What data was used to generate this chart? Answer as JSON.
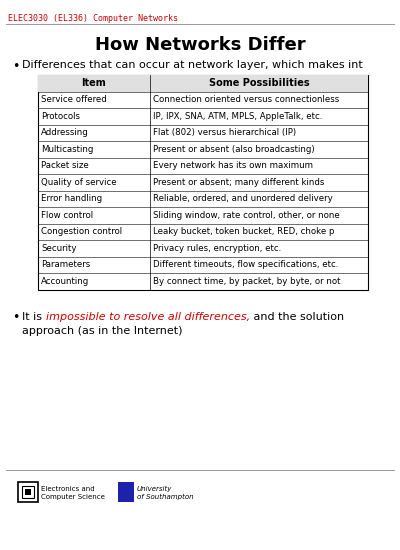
{
  "header_text": "ELEC3030 (EL336) Computer Networks",
  "title": "How Networks Differ",
  "bullet1_text": "Differences that can occur at network layer, which makes int",
  "table_headers": [
    "Item",
    "Some Possibilities"
  ],
  "table_rows": [
    [
      "Service offered",
      "Connection oriented versus connectionless"
    ],
    [
      "Protocols",
      "IP, IPX, SNA, ATM, MPLS, AppleTalk, etc."
    ],
    [
      "Addressing",
      "Flat (802) versus hierarchical (IP)"
    ],
    [
      "Multicasting",
      "Present or absent (also broadcasting)"
    ],
    [
      "Packet size",
      "Every network has its own maximum"
    ],
    [
      "Quality of service",
      "Present or absent; many different kinds"
    ],
    [
      "Error handling",
      "Reliable, ordered, and unordered delivery"
    ],
    [
      "Flow control",
      "Sliding window, rate control, other, or none"
    ],
    [
      "Congestion control",
      "Leaky bucket, token bucket, RED, choke p"
    ],
    [
      "Security",
      "Privacy rules, encryption, etc."
    ],
    [
      "Parameters",
      "Different timeouts, flow specifications, etc."
    ],
    [
      "Accounting",
      "By connect time, by packet, by byte, or not"
    ]
  ],
  "bullet2_normal1": "It is ",
  "bullet2_red": "impossible to resolve all differences,",
  "bullet2_normal2": " and the solution",
  "bullet2_line2": "approach (as in the Internet)",
  "header_color": "#cc0000",
  "highlight_color": "#cc0000",
  "bg_color": "#ffffff",
  "line_color": "#999999"
}
